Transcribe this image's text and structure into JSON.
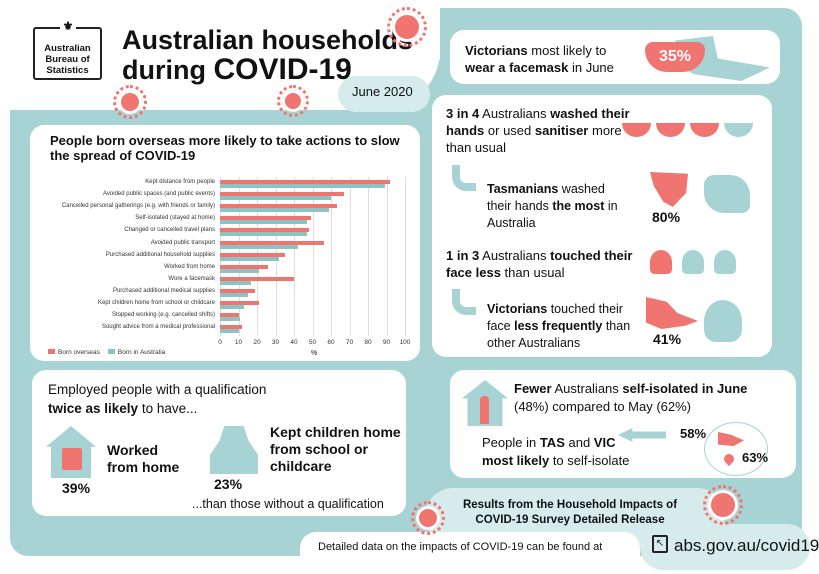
{
  "header": {
    "logo": "Australian Bureau of Statistics",
    "title_line1": "Australian households",
    "title_line2_a": "during ",
    "title_line2_b": "COVID-19",
    "date": "June 2020"
  },
  "colors": {
    "accent": "#f07470",
    "teal": "#a8d3d4",
    "teal_dark": "#8cc4c6"
  },
  "chart_panel": {
    "title": "People born overseas more likely to take actions to slow the spread of COVID-19"
  },
  "chart_data": {
    "type": "bar",
    "orientation": "horizontal",
    "title": "People born overseas more likely to take actions to slow the spread of COVID-19",
    "xlabel": "%",
    "ylabel": "",
    "xlim": [
      0,
      100
    ],
    "ticks": [
      "0",
      "10",
      "20",
      "30",
      "40",
      "50",
      "60",
      "70",
      "80",
      "90",
      "100"
    ],
    "grid": true,
    "legend_position": "bottom-left",
    "categories": [
      "Kept distance from people",
      "Avoided public spaces (and public events)",
      "Cancelled personal gatherings (e.g. with friends or family)",
      "Self-isolated (stayed at home)",
      "Changed or cancelled travel plans",
      "Avoided public transport",
      "Purchased additional household supplies",
      "Worked from home",
      "Wore a facemask",
      "Purchased additional medical supplies",
      "Kept children home from school or childcare",
      "Stopped working (e.g. cancelled shifts)",
      "Sought advice from a medical professional"
    ],
    "series": [
      {
        "name": "Born overseas",
        "color": "#f07470",
        "values": [
          92,
          67,
          63,
          49,
          48,
          56,
          35,
          26,
          40,
          19,
          21,
          10,
          12
        ]
      },
      {
        "name": "Born in Australia",
        "color": "#8cc4c6",
        "values": [
          89,
          60,
          59,
          47,
          47,
          42,
          32,
          21,
          17,
          15,
          13,
          11,
          10
        ]
      }
    ]
  },
  "facemask": {
    "a": "Victorians",
    "b": " most likely to",
    "c": "wear a facemask",
    "d": " in June",
    "value": "35%"
  },
  "hands": {
    "a": "3 in 4",
    "b": " Australians ",
    "c": "washed their hands",
    "d": " or used ",
    "e": "sanitiser",
    "f": " more than usual",
    "sub_a": "Tasmanians",
    "sub_b": " washed their hands ",
    "sub_c": "the most",
    "sub_d": " in Australia",
    "value": "80%"
  },
  "face": {
    "a": "1 in 3",
    "b": " Australians ",
    "c": "touched their face less",
    "d": " than usual",
    "sub_a": "Victorians",
    "sub_b": " touched their face ",
    "sub_c": "less frequently",
    "sub_d": " than other Australians",
    "value": "41%"
  },
  "qualification": {
    "intro": "Employed people with a qualification",
    "b": "twice as likely",
    "c": " to have...",
    "item1": "Worked from home",
    "item1_value": "39%",
    "item2": "Kept children home from school or childcare",
    "item2_value": "23%",
    "outro": "...than those without a qualification"
  },
  "isolate": {
    "a": "Fewer",
    "b": " Australians ",
    "c": "self-isolated in June",
    "d": "(48%) compared to May (62%)",
    "sub_a": "People in ",
    "sub_b": "TAS",
    "sub_c": " and ",
    "sub_d": "VIC",
    "sub_e": "most likely",
    "sub_f": " to self-isolate",
    "vic": "58%",
    "tas": "63%"
  },
  "footer": {
    "release": "Results from the Household Impacts of COVID-19 Survey Detailed Release",
    "detail": "Detailed data on the impacts of COVID-19 can be found at",
    "link": "abs.gov.au/covid19"
  }
}
